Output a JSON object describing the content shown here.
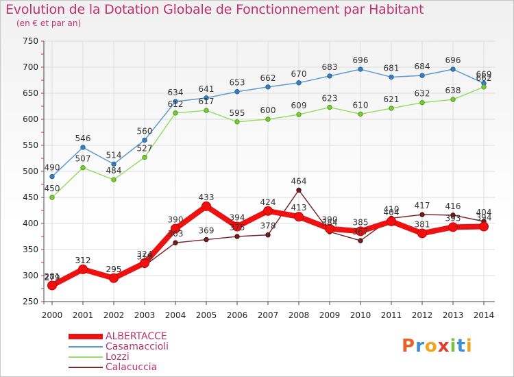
{
  "header": {
    "title": "Evolution de la Dotation Globale de Fonctionnement par Habitant",
    "subtitle": "(en € et par an)"
  },
  "logo": {
    "text": "Proxiti"
  },
  "colors": {
    "title": "#c0306a",
    "grid": "#dddddd",
    "ALBERTACCE": "#ee1111",
    "Casamaccioli": "#5b9bd5",
    "Lozzi": "#99dd66",
    "Calacuccia": "#8b3a3a"
  },
  "chart_data": {
    "type": "line",
    "title": "Evolution de la Dotation Globale de Fonctionnement par Habitant",
    "subtitle": "(en € et par an)",
    "xlabel": "",
    "ylabel": "",
    "x": [
      2000,
      2001,
      2002,
      2003,
      2004,
      2005,
      2006,
      2007,
      2008,
      2009,
      2010,
      2011,
      2012,
      2013,
      2014
    ],
    "y_ticks": [
      250,
      300,
      350,
      400,
      450,
      500,
      550,
      600,
      650,
      700,
      750
    ],
    "ylim": [
      250,
      750
    ],
    "grid": true,
    "legend_position": "bottom-left",
    "series": [
      {
        "name": "ALBERTACCE",
        "color": "#ee1111",
        "values": [
          281,
          312,
          295,
          324,
          390,
          433,
          394,
          424,
          413,
          390,
          385,
          404,
          381,
          393,
          394
        ]
      },
      {
        "name": "Casamaccioli",
        "color": "#5b9bd5",
        "values": [
          490,
          546,
          514,
          560,
          634,
          641,
          653,
          662,
          670,
          683,
          696,
          681,
          684,
          696,
          669
        ]
      },
      {
        "name": "Lozzi",
        "color": "#99dd66",
        "values": [
          450,
          507,
          484,
          527,
          612,
          617,
          595,
          600,
          609,
          623,
          610,
          621,
          632,
          638,
          662
        ]
      },
      {
        "name": "Calacuccia",
        "color": "#7a2a2a",
        "values": [
          279,
          312,
          295,
          319,
          363,
          369,
          375,
          378,
          464,
          384,
          367,
          410,
          417,
          416,
          404
        ]
      }
    ]
  }
}
